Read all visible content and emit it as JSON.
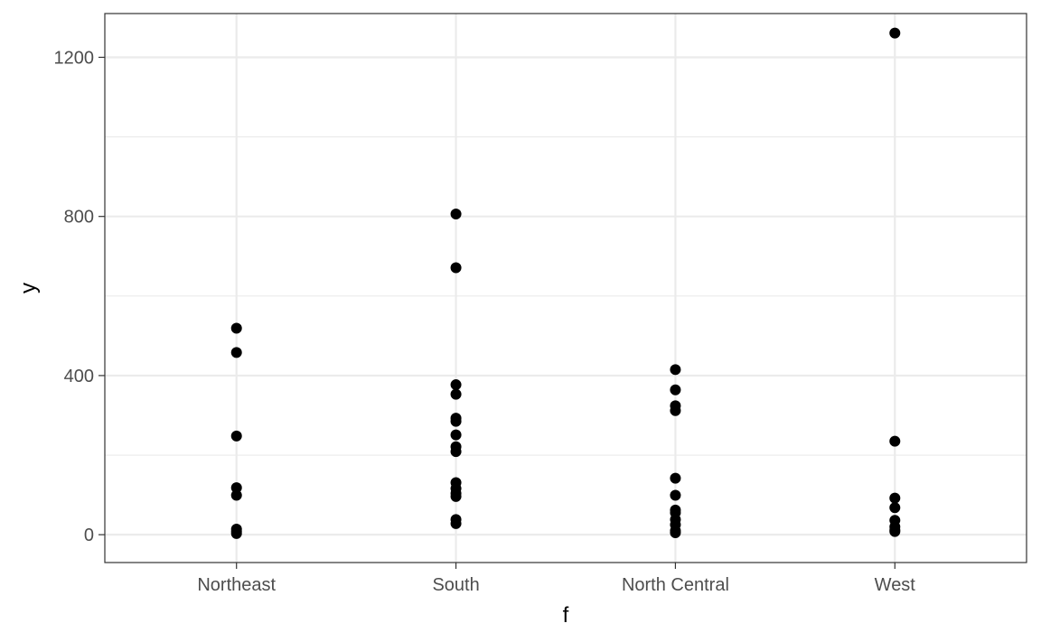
{
  "chart_data": {
    "type": "scatter",
    "title": "",
    "xlabel": "f",
    "ylabel": "y",
    "categories": [
      "Northeast",
      "South",
      "North Central",
      "West"
    ],
    "ylim": [
      -70,
      1310
    ],
    "y_ticks": [
      0,
      400,
      800,
      1200
    ],
    "y_minor_ticks": [
      200,
      600,
      1000
    ],
    "grid": true,
    "legend": "none",
    "point_color": "#000000",
    "series": [
      {
        "category": "Northeast",
        "values": [
          519,
          458,
          248,
          118,
          99,
          14,
          8,
          3
        ]
      },
      {
        "category": "South",
        "values": [
          806,
          671,
          377,
          353,
          293,
          285,
          251,
          221,
          209,
          131,
          116,
          104,
          96,
          38,
          28
        ]
      },
      {
        "category": "North Central",
        "values": [
          415,
          364,
          324,
          312,
          142,
          99,
          62,
          55,
          38,
          25,
          10,
          5
        ]
      },
      {
        "category": "West",
        "values": [
          1261,
          235,
          92,
          68,
          36,
          20,
          12,
          8
        ]
      }
    ]
  }
}
